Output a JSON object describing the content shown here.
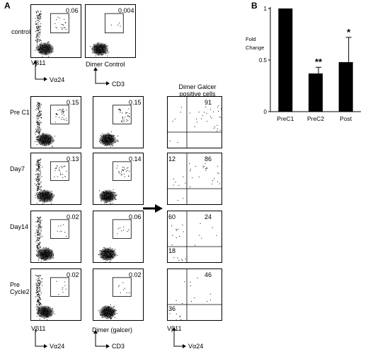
{
  "panel_a": {
    "letter": "A",
    "control_label": "control",
    "control_value_left": "0.06",
    "control_value_right": "0.004",
    "dimer_control_label": "Dimer Control",
    "axis_vb11": "Vβ11",
    "axis_va24": "Vα24",
    "axis_cd3": "CD3",
    "dimer_galcer_header": "Dimer Galcer positive cells",
    "rows": [
      {
        "label": "Pre C1",
        "v1": "0.15",
        "v2": "0.15",
        "q_tr": "91",
        "q_tl": "",
        "q_bl": ""
      },
      {
        "label": "Day7",
        "v1": "0.13",
        "v2": "0.14",
        "q_tr": "86",
        "q_tl": "12",
        "q_bl": ""
      },
      {
        "label": "Day14",
        "v1": "0.02",
        "v2": "0.06",
        "q_tr": "24",
        "q_tl": "60",
        "q_bl": "18"
      },
      {
        "label": "Pre Cycle2",
        "v1": "0.02",
        "v2": "0.02",
        "q_tr": "46",
        "q_tl": "",
        "q_bl": "36"
      }
    ],
    "bottom_vb11": "Vβ11",
    "bottom_va24": "Vα24",
    "bottom_dimer": "Dimer (galcer)",
    "bottom_cd3": "CD3",
    "bottom_vb11_right": "Vβ11",
    "bottom_va24_right": "Vα24"
  },
  "panel_b": {
    "letter": "B",
    "ylabel": "Fold Change"
  },
  "chart_data": {
    "type": "bar",
    "categories": [
      "PreC1",
      "PreC2",
      "Post"
    ],
    "values": [
      1.0,
      0.37,
      0.48
    ],
    "errors": [
      0.0,
      0.06,
      0.24
    ],
    "significance": [
      "",
      "**",
      "*"
    ],
    "ylabel": "Fold Change",
    "ylim": [
      0,
      1
    ],
    "yticks": [
      "0",
      "0.5",
      "1"
    ],
    "bar_color": "#000000"
  }
}
